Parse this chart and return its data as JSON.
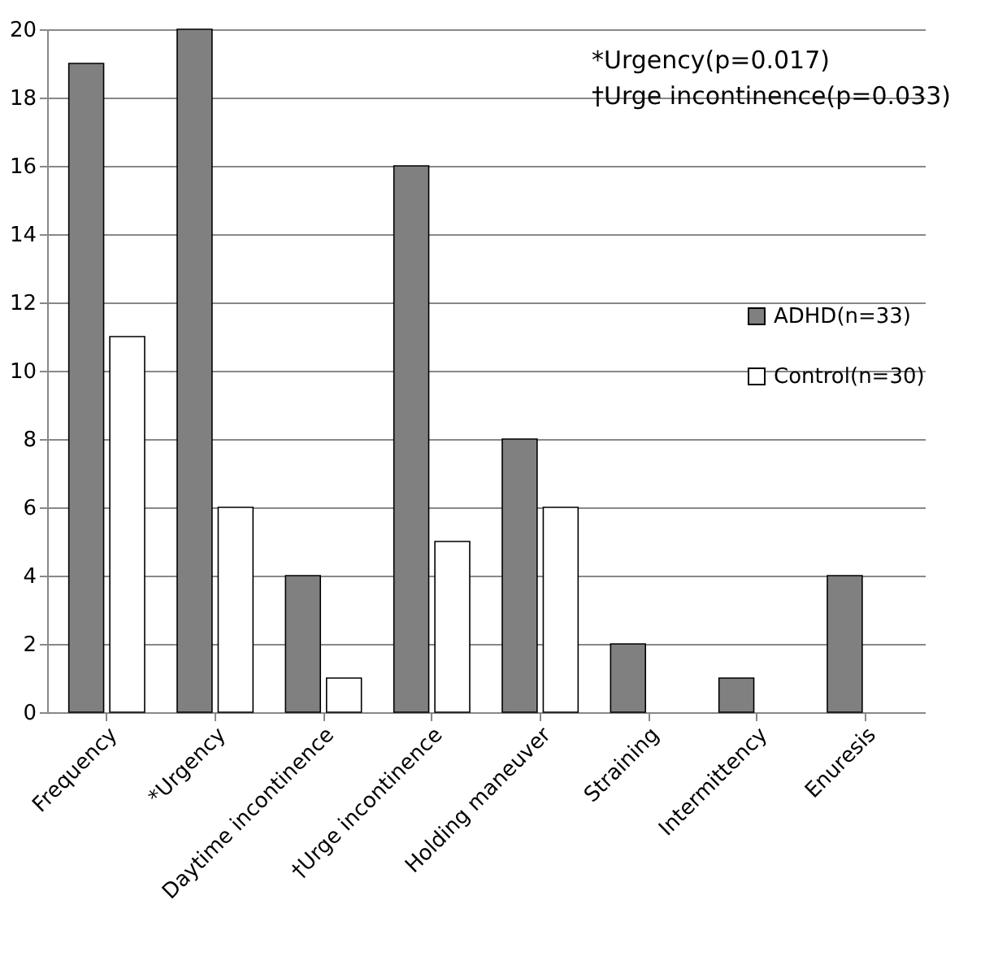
{
  "chart_data": {
    "type": "bar",
    "categories": [
      "Frequency",
      "*Urgency",
      "Daytime incontinence",
      "†Urge incontinence",
      "Holding maneuver",
      "Straining",
      "Intermittency",
      "Enuresis"
    ],
    "series": [
      {
        "name": "ADHD(n=33)",
        "color": "#808080",
        "values": [
          19,
          20,
          4,
          16,
          8,
          2,
          1,
          4
        ]
      },
      {
        "name": "Control(n=30)",
        "color": "#ffffff",
        "values": [
          11,
          6,
          1,
          5,
          6,
          0,
          0,
          0
        ]
      }
    ],
    "ylim": [
      0,
      20
    ],
    "yticks": [
      0,
      2,
      4,
      6,
      8,
      10,
      12,
      14,
      16,
      18,
      20
    ],
    "grid": "y",
    "legend": "right",
    "annotations": [
      "*Urgency(p=0.017)",
      "†Urge incontinence(p=0.033)"
    ]
  }
}
